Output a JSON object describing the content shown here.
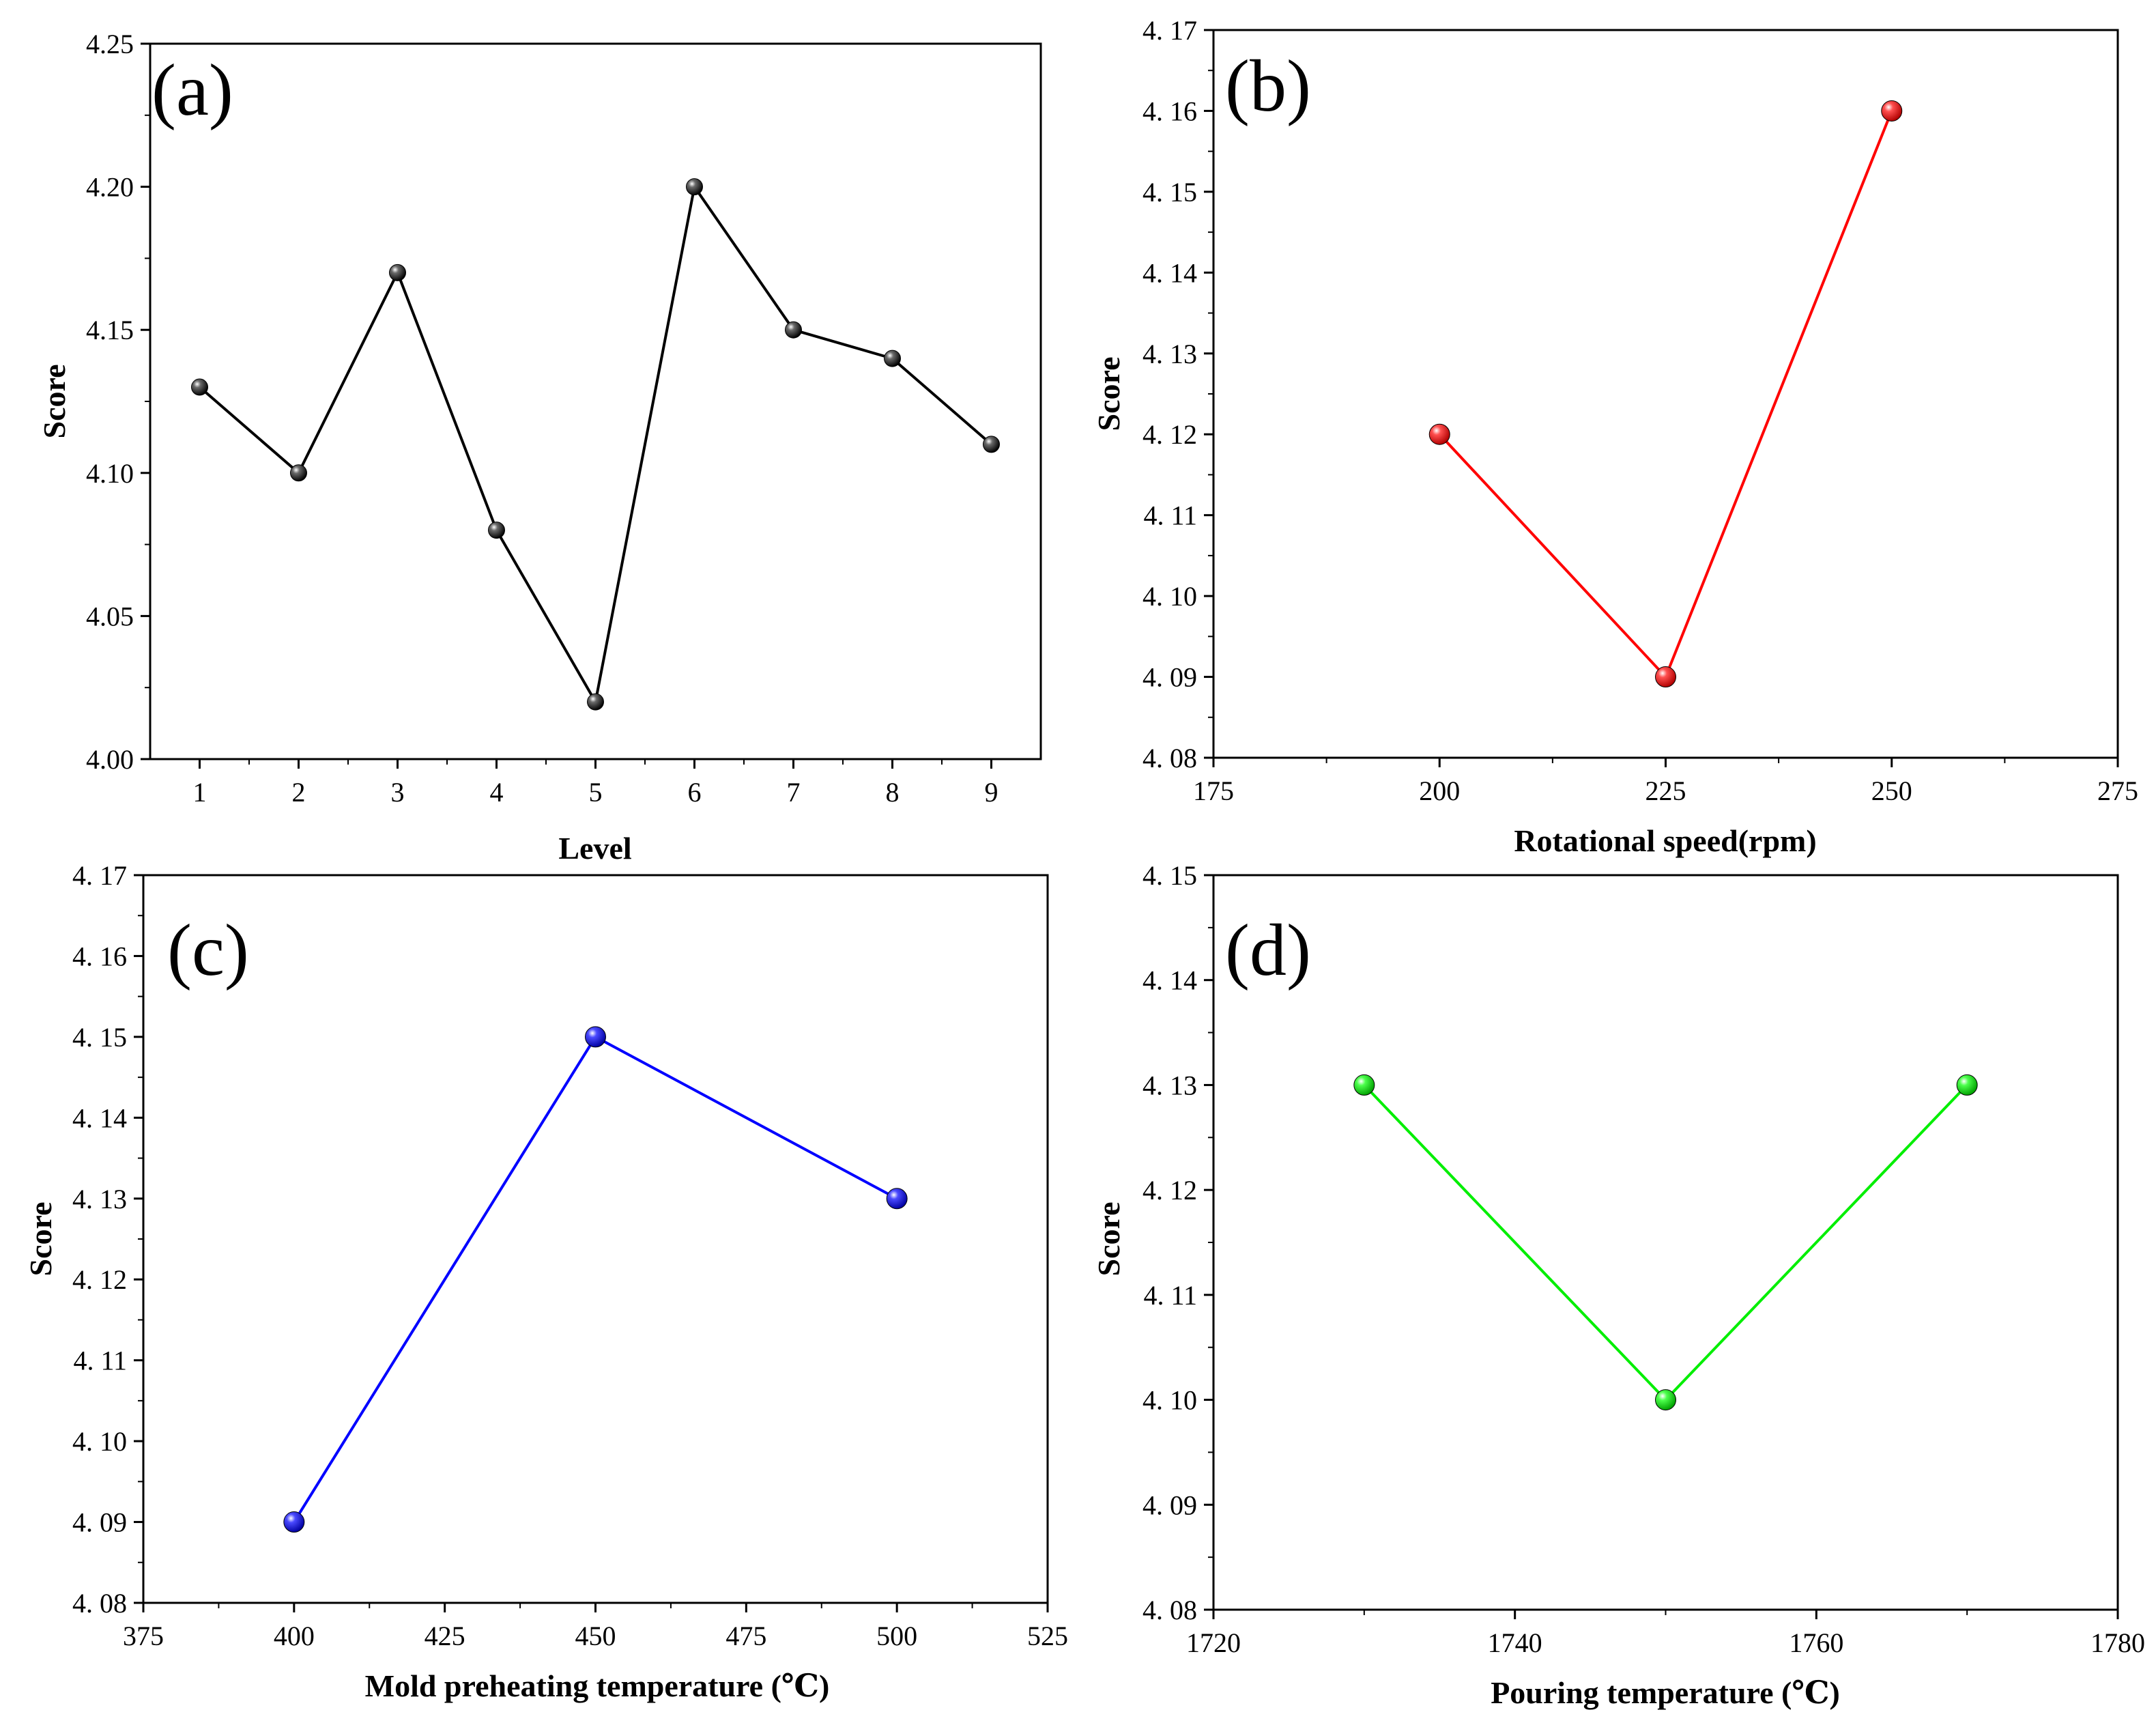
{
  "figure": {
    "panels": [
      "(a)",
      "(b)",
      "(c)",
      "(d)"
    ]
  },
  "chart_data": [
    {
      "panel": "(a)",
      "type": "line",
      "title": "",
      "xlabel": "Level",
      "ylabel": "Score",
      "x": [
        1,
        2,
        3,
        4,
        5,
        6,
        7,
        8,
        9
      ],
      "series": [
        {
          "name": "Score",
          "color": "#000000",
          "values": [
            4.13,
            4.1,
            4.17,
            4.08,
            4.02,
            4.2,
            4.15,
            4.14,
            4.11
          ]
        }
      ],
      "xlim": [
        0.5,
        9.5
      ],
      "ylim": [
        4.0,
        4.25
      ],
      "xticks": [
        1,
        2,
        3,
        4,
        5,
        6,
        7,
        8,
        9
      ],
      "xtick_labels": [
        "1",
        "2",
        "3",
        "4",
        "5",
        "6",
        "7",
        "8",
        "9"
      ],
      "yticks": [
        4.0,
        4.05,
        4.1,
        4.15,
        4.2,
        4.25
      ],
      "ytick_labels": [
        "4.00",
        "4.05",
        "4.10",
        "4.15",
        "4.20",
        "4.25"
      ],
      "grid": false
    },
    {
      "panel": "(b)",
      "type": "line",
      "title": "",
      "xlabel": "Rotational speed(rpm)",
      "ylabel": "Score",
      "x": [
        200,
        225,
        250
      ],
      "series": [
        {
          "name": "Score",
          "color": "#ff0000",
          "values": [
            4.12,
            4.09,
            4.16
          ]
        }
      ],
      "xlim": [
        175,
        275
      ],
      "ylim": [
        4.08,
        4.17
      ],
      "xticks": [
        175,
        200,
        225,
        250,
        275
      ],
      "xtick_labels": [
        "175",
        "200",
        "225",
        "250",
        "275"
      ],
      "yticks": [
        4.08,
        4.09,
        4.1,
        4.11,
        4.12,
        4.13,
        4.14,
        4.15,
        4.16,
        4.17
      ],
      "ytick_labels": [
        "4. 08",
        "4. 09",
        "4. 10",
        "4. 11",
        "4. 12",
        "4. 13",
        "4. 14",
        "4. 15",
        "4. 16",
        "4. 17"
      ],
      "grid": false
    },
    {
      "panel": "(c)",
      "type": "line",
      "title": "",
      "xlabel": "Mold preheating temperature (℃)",
      "ylabel": "Score",
      "x": [
        400,
        450,
        500
      ],
      "series": [
        {
          "name": "Score",
          "color": "#0000ff",
          "values": [
            4.09,
            4.15,
            4.13
          ]
        }
      ],
      "xlim": [
        375,
        525
      ],
      "ylim": [
        4.08,
        4.17
      ],
      "xticks": [
        375,
        400,
        425,
        450,
        475,
        500,
        525
      ],
      "xtick_labels": [
        "375",
        "400",
        "425",
        "450",
        "475",
        "500",
        "525"
      ],
      "yticks": [
        4.08,
        4.09,
        4.1,
        4.11,
        4.12,
        4.13,
        4.14,
        4.15,
        4.16,
        4.17
      ],
      "ytick_labels": [
        "4. 08",
        "4. 09",
        "4. 10",
        "4. 11",
        "4. 12",
        "4. 13",
        "4. 14",
        "4. 15",
        "4. 16",
        "4. 17"
      ],
      "grid": false
    },
    {
      "panel": "(d)",
      "type": "line",
      "title": "",
      "xlabel": "Pouring temperature (℃)",
      "ylabel": "Score",
      "x": [
        1730,
        1750,
        1770
      ],
      "series": [
        {
          "name": "Score",
          "color": "#00ee00",
          "values": [
            4.13,
            4.1,
            4.13
          ]
        }
      ],
      "xlim": [
        1720,
        1780
      ],
      "ylim": [
        4.08,
        4.15
      ],
      "xticks": [
        1720,
        1740,
        1760,
        1780
      ],
      "xtick_labels": [
        "1720",
        "1740",
        "1760",
        "1780"
      ],
      "yticks": [
        4.08,
        4.09,
        4.1,
        4.11,
        4.12,
        4.13,
        4.14,
        4.15
      ],
      "ytick_labels": [
        "4. 08",
        "4. 09",
        "4. 10",
        "4. 11",
        "4. 12",
        "4. 13",
        "4. 14",
        "4. 15"
      ],
      "grid": false
    }
  ]
}
